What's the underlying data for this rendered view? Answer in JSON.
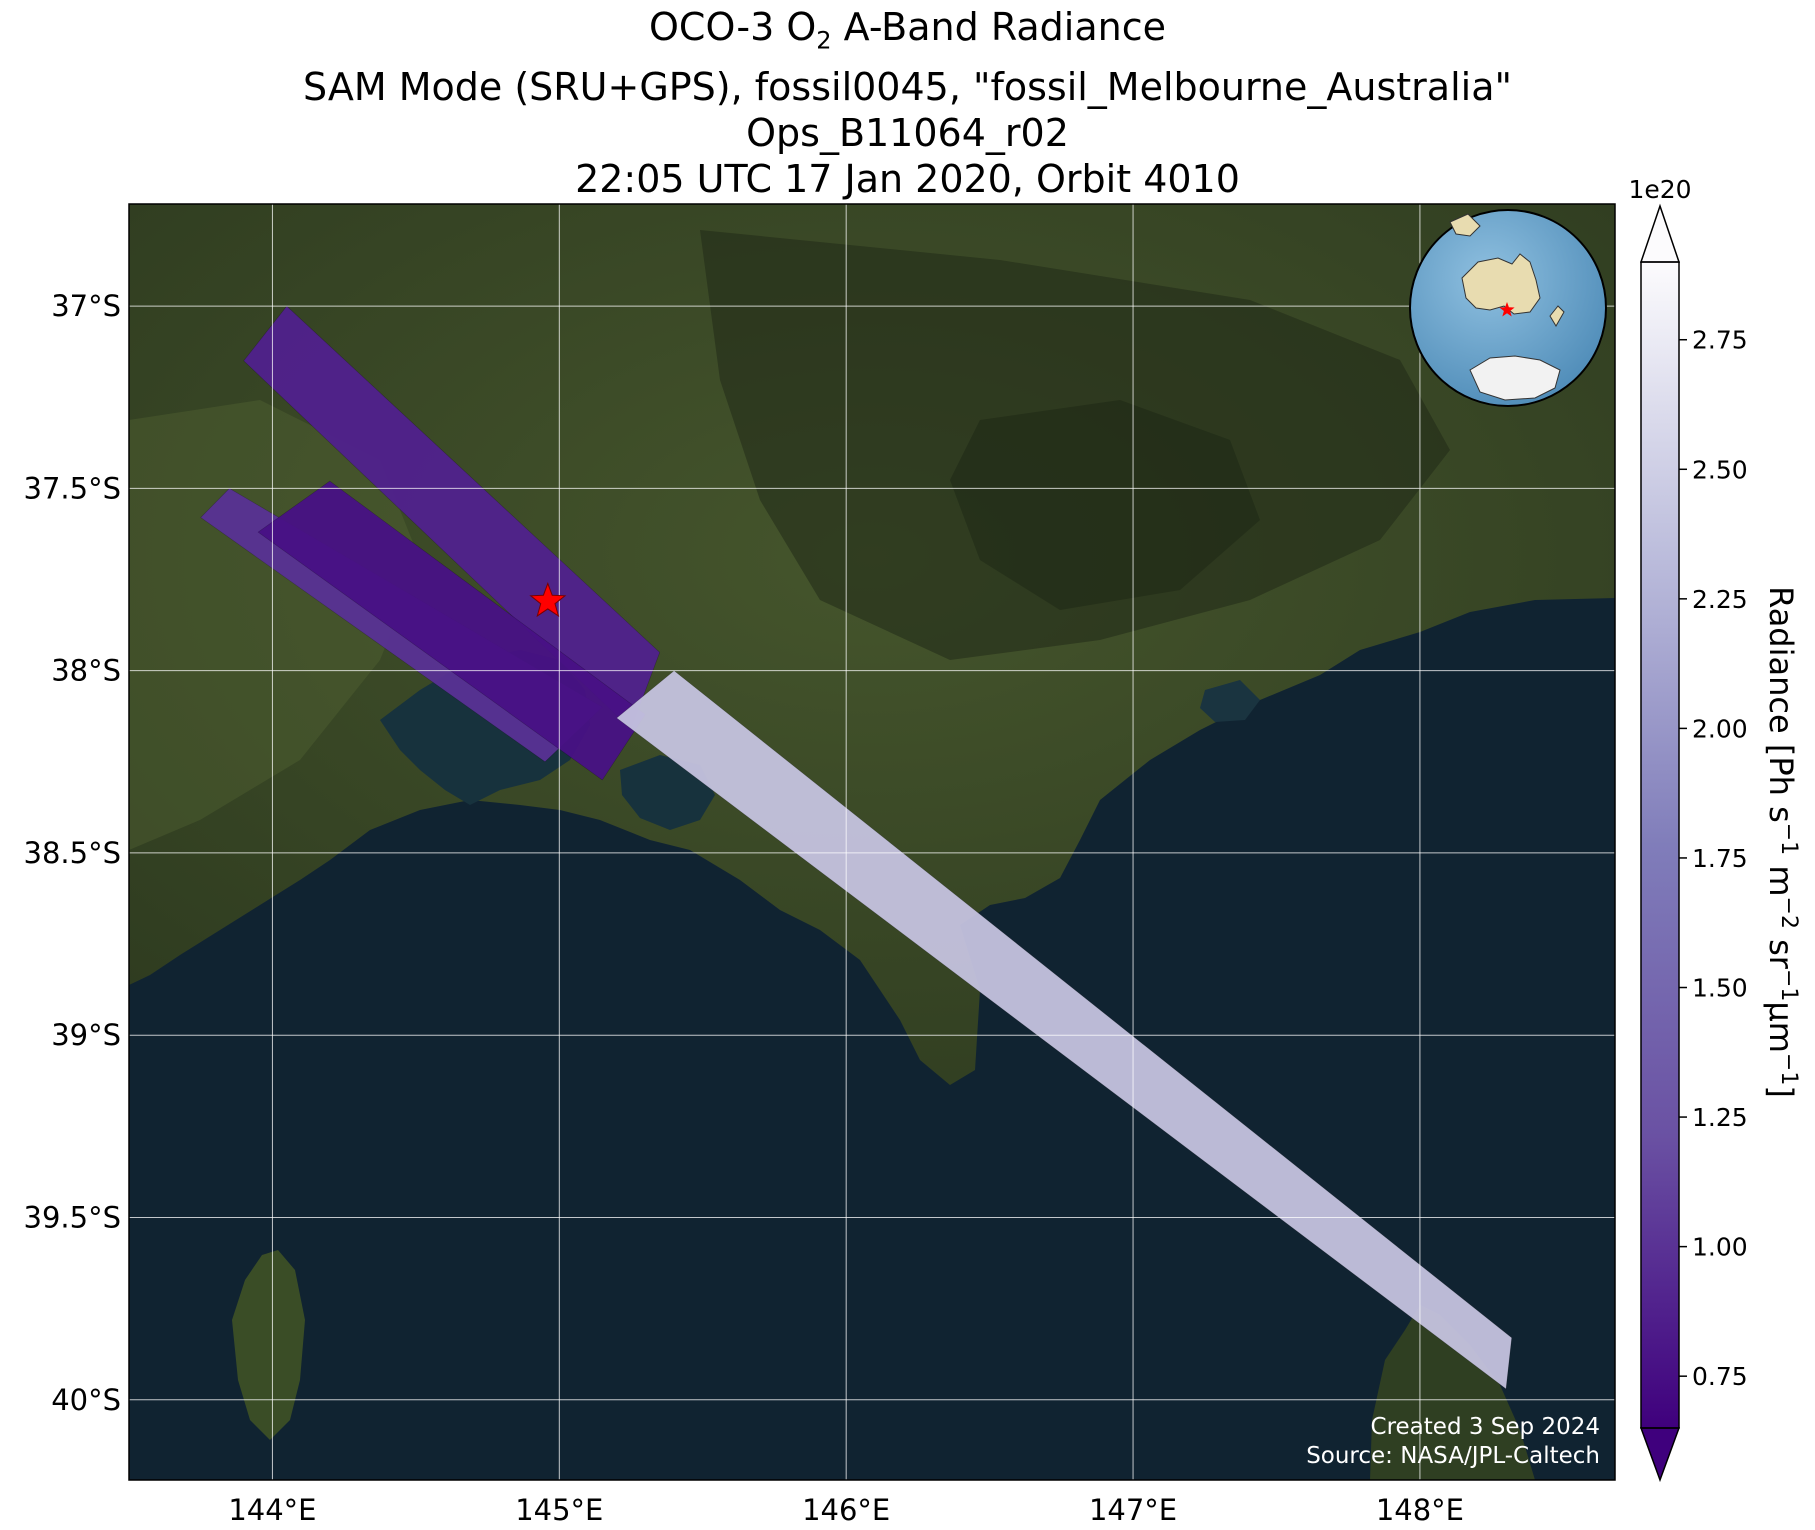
{
  "title": {
    "line1_pre": "OCO-3 O",
    "line1_sub": "2",
    "line1_post": " A-Band Radiance",
    "line2": "SAM Mode (SRU+GPS), fossil0045, \"fossil_Melbourne_Australia\"",
    "line3": "Ops_B11064_r02",
    "line4": "22:05 UTC 17 Jan 2020, Orbit 4010"
  },
  "map": {
    "lon_range": [
      143.5,
      148.68
    ],
    "lat_range": [
      -40.22,
      -36.72
    ],
    "x_ticks": [
      "144°E",
      "145°E",
      "146°E",
      "147°E",
      "148°E"
    ],
    "x_tick_values": [
      144,
      145,
      146,
      147,
      148
    ],
    "y_ticks": [
      "37°S",
      "37.5°S",
      "38°S",
      "38.5°S",
      "39°S",
      "39.5°S",
      "40°S"
    ],
    "y_tick_values": [
      -37,
      -37.5,
      -38,
      -38.5,
      -39,
      -39.5,
      -40
    ],
    "grid": true,
    "background": "satellite imagery",
    "target_marker": {
      "lon": 144.96,
      "lat": -37.81,
      "symbol": "red-star",
      "color": "#ff0000"
    },
    "inset_globe": {
      "position": "top-right",
      "marker": "red-star"
    }
  },
  "swaths": [
    {
      "name": "swath-1",
      "corners": [
        [
          144.05,
          -37.0
        ],
        [
          145.35,
          -37.95
        ],
        [
          145.25,
          -38.16
        ],
        [
          143.9,
          -37.15
        ]
      ],
      "radiance": 0.95
    },
    {
      "name": "swath-2",
      "corners": [
        [
          143.85,
          -37.5
        ],
        [
          145.15,
          -38.1
        ],
        [
          144.95,
          -38.25
        ],
        [
          143.75,
          -37.58
        ]
      ],
      "radiance": 1.1
    },
    {
      "name": "swath-3",
      "corners": [
        [
          144.2,
          -37.48
        ],
        [
          145.3,
          -38.12
        ],
        [
          145.15,
          -38.3
        ],
        [
          143.95,
          -37.62
        ]
      ],
      "radiance": 0.8
    },
    {
      "name": "swath-4",
      "corners": [
        [
          145.4,
          -38.0
        ],
        [
          148.32,
          -39.83
        ],
        [
          148.3,
          -39.97
        ],
        [
          145.2,
          -38.13
        ]
      ],
      "radiance": 2.4
    }
  ],
  "colorbar": {
    "exponent_label": "1e20",
    "label_pre": "Radiance [Ph s",
    "label": "Radiance [Ph s⁻¹ m⁻² sr⁻¹μm⁻¹]",
    "range": [
      0.65,
      2.9
    ],
    "tick_values": [
      0.75,
      1.0,
      1.25,
      1.5,
      1.75,
      2.0,
      2.25,
      2.5,
      2.75
    ],
    "tick_labels": [
      "0.75",
      "1.00",
      "1.25",
      "1.50",
      "1.75",
      "2.00",
      "2.25",
      "2.50",
      "2.75"
    ],
    "colormap": "Purples_r",
    "extend": "both",
    "color_low": "#3f007d",
    "color_mid": "#807dba",
    "color_high": "#fcfbfd"
  },
  "credits": {
    "created": "Created 3 Sep 2024",
    "source": "Source: NASA/JPL-Caltech"
  }
}
